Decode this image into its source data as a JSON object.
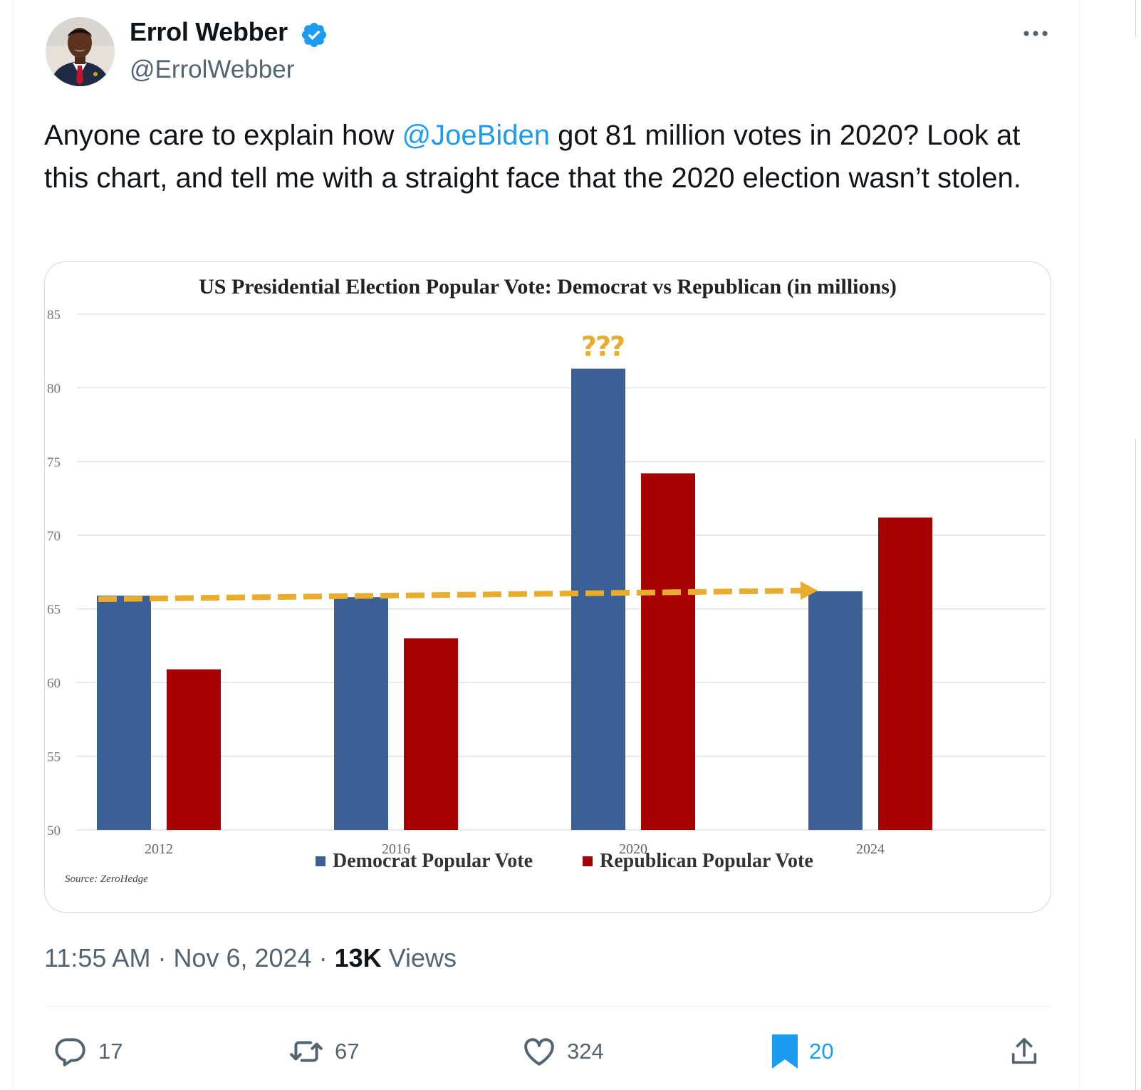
{
  "author": {
    "name": "Errol Webber",
    "handle": "@ErrolWebber",
    "verified": true
  },
  "tweet": {
    "text_before": "Anyone care to explain how ",
    "mention": "@JoeBiden",
    "text_after": " got 81 million votes in 2020? Look at this chart, and tell me with a straight face that the 2020 election wasn’t stolen."
  },
  "meta": {
    "time": "11:55 AM",
    "date": "Nov 6, 2024",
    "views_count": "13K",
    "views_label": "Views"
  },
  "actions": {
    "replies": "17",
    "reposts": "67",
    "likes": "324",
    "bookmarks": "20"
  },
  "colors": {
    "accent": "#1d9bf0",
    "democrat": "#3c5f96",
    "republican": "#a70000",
    "arrow": "#e8ad2e"
  },
  "icons": [
    "verified-badge-icon",
    "more-icon",
    "reply-icon",
    "repost-icon",
    "like-icon",
    "bookmark-icon",
    "share-icon"
  ],
  "chart_data": {
    "type": "bar",
    "title": "US Presidential Election Popular Vote: Democrat vs Republican (in millions)",
    "categories": [
      "2012",
      "2016",
      "2020",
      "2024"
    ],
    "series": [
      {
        "name": "Democrat Popular Vote",
        "values": [
          65.9,
          65.8,
          81.3,
          66.2
        ]
      },
      {
        "name": "Republican Popular Vote",
        "values": [
          60.9,
          63.0,
          74.2,
          71.2
        ]
      }
    ],
    "ylim": [
      50,
      85
    ],
    "yticks": [
      "85",
      "80",
      "75",
      "70",
      "65",
      "60",
      "55",
      "50"
    ],
    "grid": true,
    "legend_position": "bottom",
    "annotation": "???",
    "trend_arrow": {
      "from": "2012",
      "to": "2024",
      "value": 66
    },
    "source": "Source: ZeroHedge"
  }
}
